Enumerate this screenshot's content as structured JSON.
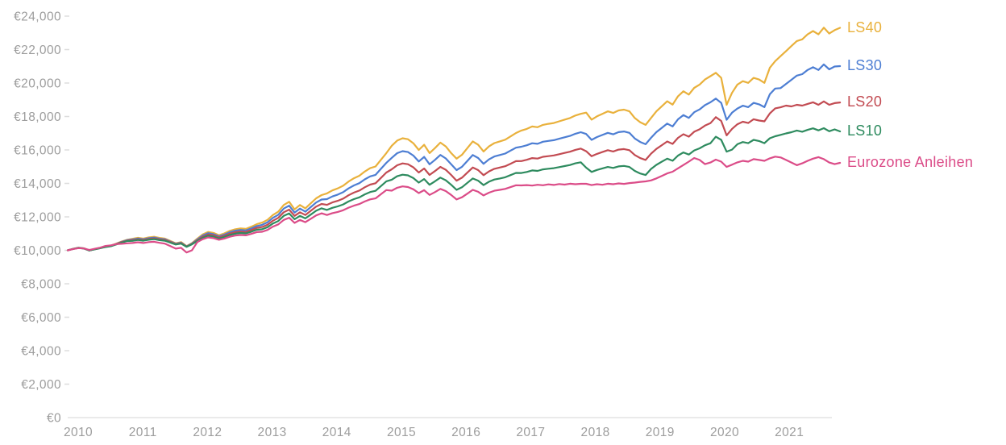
{
  "chart_data": {
    "type": "line",
    "title": "",
    "x_unit": "month",
    "x_start": "2010-01",
    "x_ticks": [
      "2010",
      "2011",
      "2012",
      "2013",
      "2014",
      "2015",
      "2016",
      "2017",
      "2018",
      "2019",
      "2020",
      "2021"
    ],
    "y_ticks": [
      {
        "value": 24000,
        "label": "€24,000"
      },
      {
        "value": 22000,
        "label": "€22,000"
      },
      {
        "value": 20000,
        "label": "€20,000"
      },
      {
        "value": 18000,
        "label": "€18,000"
      },
      {
        "value": 16000,
        "label": "€16,000"
      },
      {
        "value": 14000,
        "label": "€14,000"
      },
      {
        "value": 12000,
        "label": "€12,000"
      },
      {
        "value": 10000,
        "label": "€10,000"
      },
      {
        "value": 8000,
        "label": "€8,000"
      },
      {
        "value": 6000,
        "label": "€6,000"
      },
      {
        "value": 4000,
        "label": "€4,000"
      },
      {
        "value": 2000,
        "label": "€2,000"
      },
      {
        "value": 0,
        "label": "€0"
      }
    ],
    "ylim": [
      0,
      24000
    ],
    "grid": false,
    "legend_position": "right-of-line-ends",
    "axis_colors": {
      "text": "#9d9d9d",
      "line": "#e3e3e3",
      "tick": "#dddddd"
    },
    "series": [
      {
        "name": "LS40",
        "color": "#e9b13c",
        "values": [
          10000,
          10090,
          10160,
          10120,
          9990,
          10070,
          10140,
          10230,
          10280,
          10400,
          10530,
          10630,
          10690,
          10750,
          10700,
          10770,
          10810,
          10740,
          10700,
          10560,
          10420,
          10490,
          10250,
          10430,
          10700,
          10950,
          11100,
          11040,
          10900,
          11010,
          11160,
          11260,
          11310,
          11280,
          11410,
          11560,
          11660,
          11820,
          12110,
          12310,
          12710,
          12900,
          12450,
          12710,
          12510,
          12810,
          13110,
          13300,
          13400,
          13580,
          13700,
          13860,
          14110,
          14310,
          14460,
          14710,
          14910,
          15010,
          15410,
          15810,
          16250,
          16560,
          16700,
          16640,
          16400,
          16000,
          16310,
          15810,
          16110,
          16440,
          16210,
          15810,
          15480,
          15710,
          16110,
          16510,
          16310,
          15910,
          16210,
          16410,
          16510,
          16610,
          16810,
          17010,
          17160,
          17260,
          17400,
          17360,
          17500,
          17560,
          17610,
          17710,
          17810,
          17910,
          18060,
          18160,
          18230,
          17810,
          18010,
          18160,
          18310,
          18210,
          18360,
          18410,
          18310,
          17910,
          17660,
          17500,
          17910,
          18310,
          18610,
          18910,
          18710,
          19210,
          19510,
          19310,
          19710,
          19910,
          20210,
          20410,
          20610,
          20310,
          18700,
          19410,
          19910,
          20110,
          20010,
          20310,
          20210,
          20010,
          20910,
          21310,
          21610,
          21910,
          22210,
          22510,
          22610,
          22910,
          23110,
          22910,
          23310,
          22960,
          23160,
          23300
        ]
      },
      {
        "name": "LS30",
        "color": "#4d7ed3",
        "values": [
          10000,
          10085,
          10155,
          10115,
          9990,
          10065,
          10135,
          10220,
          10270,
          10385,
          10510,
          10605,
          10650,
          10705,
          10660,
          10725,
          10760,
          10695,
          10660,
          10525,
          10395,
          10460,
          10235,
          10405,
          10650,
          10885,
          11025,
          10965,
          10835,
          10940,
          11080,
          11170,
          11220,
          11190,
          11310,
          11450,
          11525,
          11675,
          11940,
          12125,
          12495,
          12670,
          12255,
          12495,
          12310,
          12585,
          12860,
          13035,
          13060,
          13220,
          13330,
          13475,
          13700,
          13880,
          14015,
          14240,
          14420,
          14510,
          14870,
          15230,
          15530,
          15805,
          15930,
          15875,
          15665,
          15310,
          15585,
          15140,
          15405,
          15700,
          15495,
          15140,
          14795,
          14995,
          15345,
          15695,
          15520,
          15170,
          15435,
          15610,
          15695,
          15785,
          15960,
          16135,
          16195,
          16280,
          16400,
          16365,
          16490,
          16540,
          16585,
          16670,
          16755,
          16840,
          16970,
          17060,
          16955,
          16600,
          16770,
          16895,
          17020,
          16935,
          17065,
          17105,
          17020,
          16685,
          16475,
          16340,
          16725,
          17065,
          17320,
          17575,
          17405,
          17830,
          18085,
          17915,
          18255,
          18425,
          18680,
          18850,
          19070,
          18815,
          17800,
          18225,
          18475,
          18645,
          18560,
          18815,
          18730,
          18560,
          19330,
          19670,
          19695,
          19945,
          20195,
          20445,
          20530,
          20780,
          20945,
          20780,
          21115,
          20820,
          20990,
          21010
        ]
      },
      {
        "name": "LS20",
        "color": "#c24b52",
        "values": [
          10000,
          10080,
          10145,
          10110,
          9990,
          10065,
          10130,
          10210,
          10260,
          10370,
          10490,
          10580,
          10605,
          10660,
          10615,
          10680,
          10715,
          10650,
          10615,
          10495,
          10370,
          10430,
          10220,
          10380,
          10600,
          10815,
          10945,
          10895,
          10775,
          10870,
          11000,
          11085,
          11125,
          11100,
          11215,
          11340,
          11395,
          11530,
          11770,
          11940,
          12275,
          12435,
          12060,
          12275,
          12110,
          12360,
          12610,
          12770,
          12720,
          12865,
          12960,
          13090,
          13290,
          13450,
          13570,
          13770,
          13930,
          14010,
          14330,
          14650,
          14845,
          15085,
          15195,
          15145,
          14960,
          14650,
          14890,
          14505,
          14735,
          14990,
          14815,
          14505,
          14165,
          14340,
          14645,
          14950,
          14795,
          14490,
          14720,
          14870,
          14950,
          15025,
          15175,
          15330,
          15335,
          15410,
          15515,
          15485,
          15590,
          15630,
          15670,
          15745,
          15820,
          15895,
          16005,
          16080,
          15925,
          15625,
          15765,
          15875,
          15985,
          15910,
          16020,
          16055,
          15985,
          15695,
          15515,
          15400,
          15775,
          16065,
          16285,
          16505,
          16360,
          16725,
          16940,
          16795,
          17090,
          17235,
          17455,
          17600,
          17960,
          17735,
          16870,
          17260,
          17535,
          17685,
          17610,
          17835,
          17760,
          17710,
          18185,
          18485,
          18550,
          18650,
          18600,
          18700,
          18650,
          18750,
          18850,
          18700,
          18900,
          18700,
          18800,
          18840
        ]
      },
      {
        "name": "LS10",
        "color": "#2e8b5f",
        "values": [
          10000,
          10080,
          10140,
          10105,
          9990,
          10060,
          10125,
          10200,
          10245,
          10350,
          10465,
          10555,
          10565,
          10615,
          10575,
          10630,
          10665,
          10605,
          10575,
          10460,
          10345,
          10400,
          10205,
          10355,
          10555,
          10750,
          10870,
          10820,
          10710,
          10800,
          10915,
          10995,
          11035,
          11010,
          11115,
          11230,
          11260,
          11385,
          11605,
          11755,
          12060,
          12205,
          11860,
          12060,
          11910,
          12135,
          12365,
          12510,
          12415,
          12540,
          12625,
          12740,
          12920,
          13060,
          13165,
          13345,
          13485,
          13555,
          13840,
          14125,
          14220,
          14430,
          14520,
          14480,
          14320,
          14050,
          14260,
          13920,
          14125,
          14345,
          14190,
          13920,
          13615,
          13770,
          14035,
          14295,
          14165,
          13900,
          14100,
          14230,
          14295,
          14365,
          14495,
          14625,
          14620,
          14685,
          14775,
          14745,
          14840,
          14875,
          14910,
          14975,
          15035,
          15100,
          15200,
          15265,
          14940,
          14685,
          14805,
          14895,
          14985,
          14925,
          15015,
          15045,
          14985,
          14745,
          14595,
          14500,
          14865,
          15110,
          15295,
          15480,
          15355,
          15665,
          15850,
          15725,
          15970,
          16095,
          16280,
          16400,
          16790,
          16600,
          15900,
          16020,
          16340,
          16470,
          16405,
          16600,
          16535,
          16405,
          16700,
          16820,
          16900,
          16990,
          17060,
          17160,
          17090,
          17200,
          17290,
          17170,
          17300,
          17120,
          17230,
          17110
        ]
      },
      {
        "name": "Eurozone Anleihen",
        "color": "#db4c88",
        "values": [
          10000,
          10075,
          10130,
          10110,
          10020,
          10090,
          10160,
          10260,
          10300,
          10370,
          10390,
          10420,
          10440,
          10480,
          10440,
          10490,
          10510,
          10450,
          10400,
          10250,
          10100,
          10150,
          9870,
          10000,
          10490,
          10665,
          10770,
          10730,
          10630,
          10705,
          10810,
          10880,
          10915,
          10895,
          10985,
          11090,
          11110,
          11220,
          11415,
          11550,
          11815,
          11945,
          11640,
          11815,
          11680,
          11885,
          12085,
          12210,
          12110,
          12220,
          12295,
          12395,
          12550,
          12670,
          12765,
          12920,
          13045,
          13105,
          13355,
          13600,
          13565,
          13740,
          13820,
          13785,
          13650,
          13420,
          13595,
          13310,
          13480,
          13670,
          13540,
          13310,
          13040,
          13170,
          13390,
          13615,
          13500,
          13280,
          13445,
          13560,
          13615,
          13670,
          13780,
          13890,
          13880,
          13900,
          13870,
          13920,
          13890,
          13940,
          13910,
          13960,
          13930,
          13980,
          13950,
          13975,
          13975,
          13900,
          13950,
          13920,
          13980,
          13950,
          14000,
          13970,
          14020,
          14050,
          14090,
          14120,
          14180,
          14300,
          14450,
          14600,
          14700,
          14900,
          15100,
          15300,
          15520,
          15400,
          15150,
          15250,
          15420,
          15300,
          14990,
          15120,
          15260,
          15350,
          15300,
          15450,
          15400,
          15350,
          15500,
          15600,
          15550,
          15400,
          15250,
          15090,
          15200,
          15350,
          15480,
          15570,
          15450,
          15250,
          15150,
          15230
        ]
      }
    ]
  }
}
